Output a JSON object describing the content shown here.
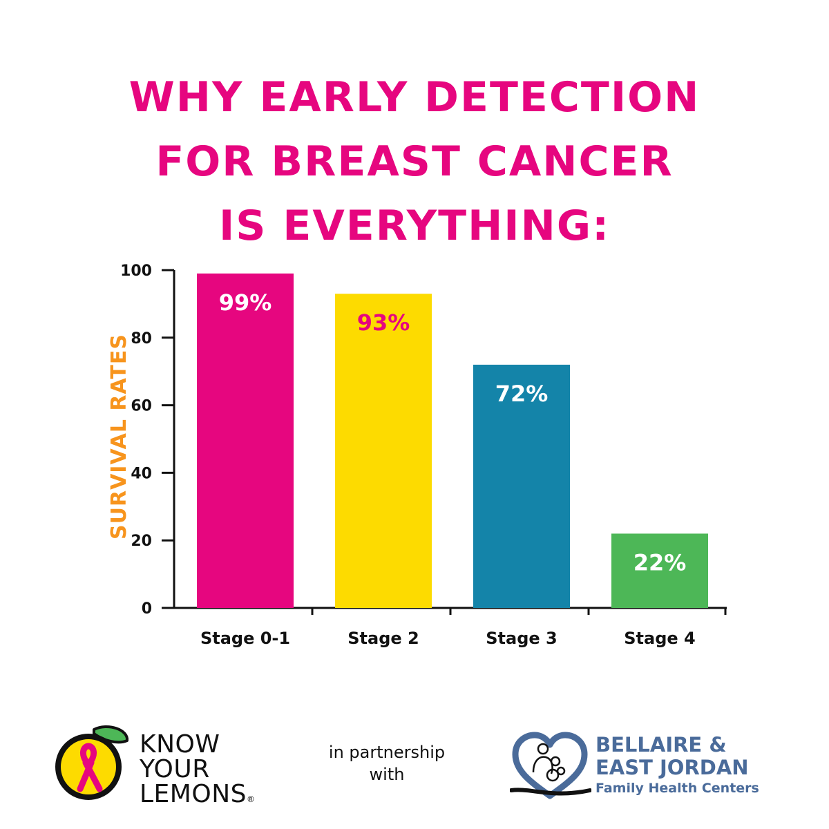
{
  "title_lines": [
    "WHY EARLY DETECTION",
    "FOR BREAST CANCER",
    "IS EVERYTHING:"
  ],
  "chart_data": {
    "type": "bar",
    "categories": [
      "Stage 0-1",
      "Stage 2",
      "Stage 3",
      "Stage 4"
    ],
    "values": [
      99,
      93,
      72,
      22
    ],
    "data_labels": [
      "99%",
      "93%",
      "72%",
      "22%"
    ],
    "bar_colors": [
      "#e6067f",
      "#fddb00",
      "#1484a9",
      "#4db757"
    ],
    "label_colors": [
      "#ffffff",
      "#e6067f",
      "#ffffff",
      "#ffffff"
    ],
    "ylabel": "SURVIVAL RATES",
    "xlabel": "",
    "ylim": [
      0,
      100
    ],
    "yticks": [
      0,
      20,
      40,
      60,
      80,
      100
    ]
  },
  "footer": {
    "kyl_lines": [
      "KNOW",
      "YOUR",
      "LEMONS"
    ],
    "kyl_reg": "®",
    "partnership_lines": [
      "in partnership",
      "with"
    ],
    "bej_lines": [
      "BELLAIRE &",
      "EAST JORDAN",
      "Family Health Centers"
    ]
  }
}
